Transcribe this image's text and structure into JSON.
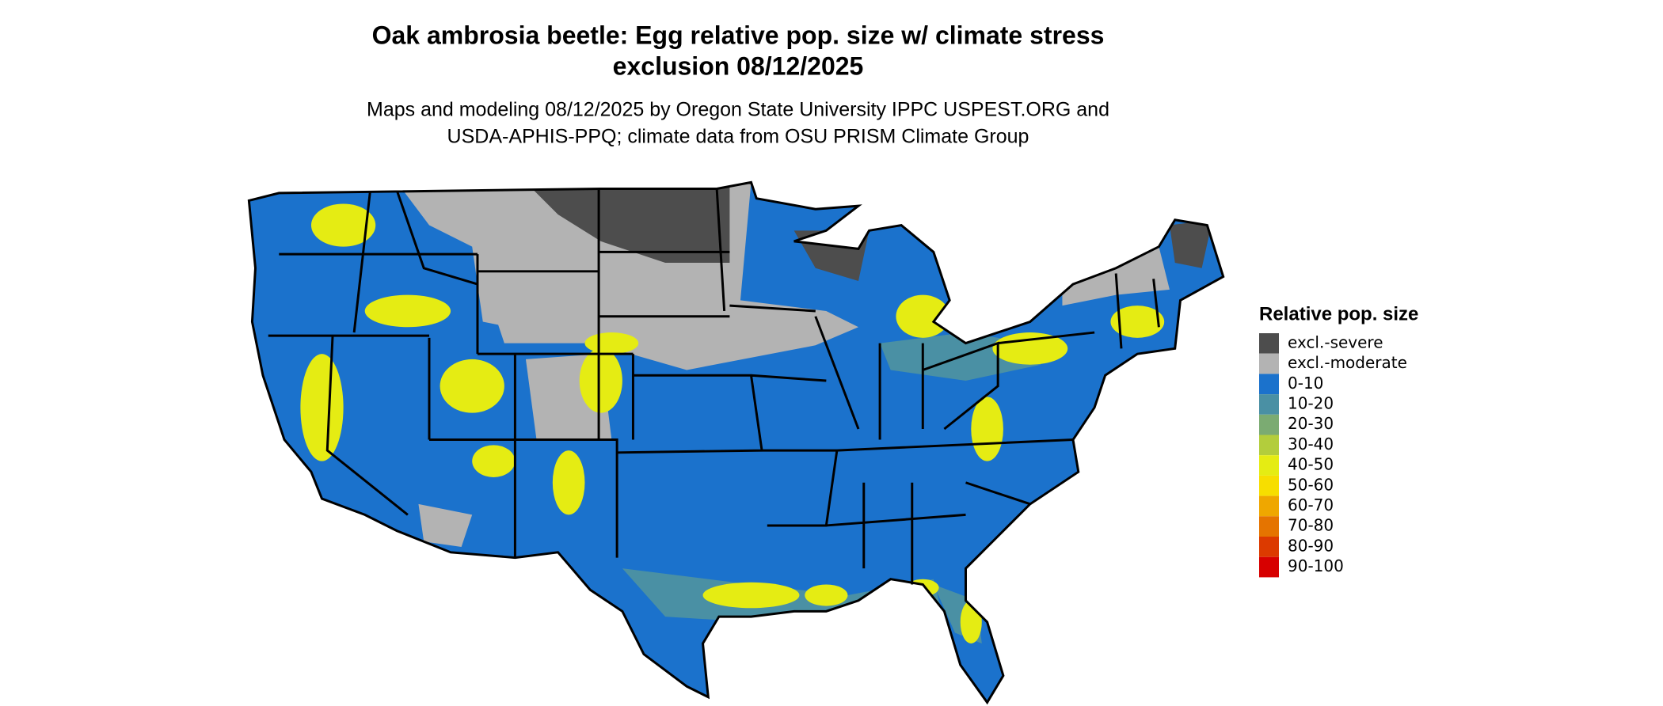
{
  "title": [
    "Oak ambrosia beetle: Egg relative pop. size w/ climate stress",
    "exclusion 08/12/2025"
  ],
  "subtitle": [
    "Maps and modeling 08/12/2025 by Oregon State University IPPC USPEST.ORG and",
    "USDA-APHIS-PPQ; climate data from OSU PRISM Climate Group"
  ],
  "legend": {
    "title": "Relative pop. size",
    "items": [
      {
        "label": "excl.-severe",
        "color": "#4d4d4d"
      },
      {
        "label": "excl.-moderate",
        "color": "#b3b3b3"
      },
      {
        "label": "0-10",
        "color": "#1b72cc"
      },
      {
        "label": "10-20",
        "color": "#4a90a4"
      },
      {
        "label": "20-30",
        "color": "#7bab72"
      },
      {
        "label": "30-40",
        "color": "#b3cd3c"
      },
      {
        "label": "40-50",
        "color": "#e5ec13"
      },
      {
        "label": "50-60",
        "color": "#f7de00"
      },
      {
        "label": "60-70",
        "color": "#efa700"
      },
      {
        "label": "70-80",
        "color": "#e57400"
      },
      {
        "label": "80-90",
        "color": "#dc3a00"
      },
      {
        "label": "90-100",
        "color": "#d70000"
      }
    ]
  }
}
